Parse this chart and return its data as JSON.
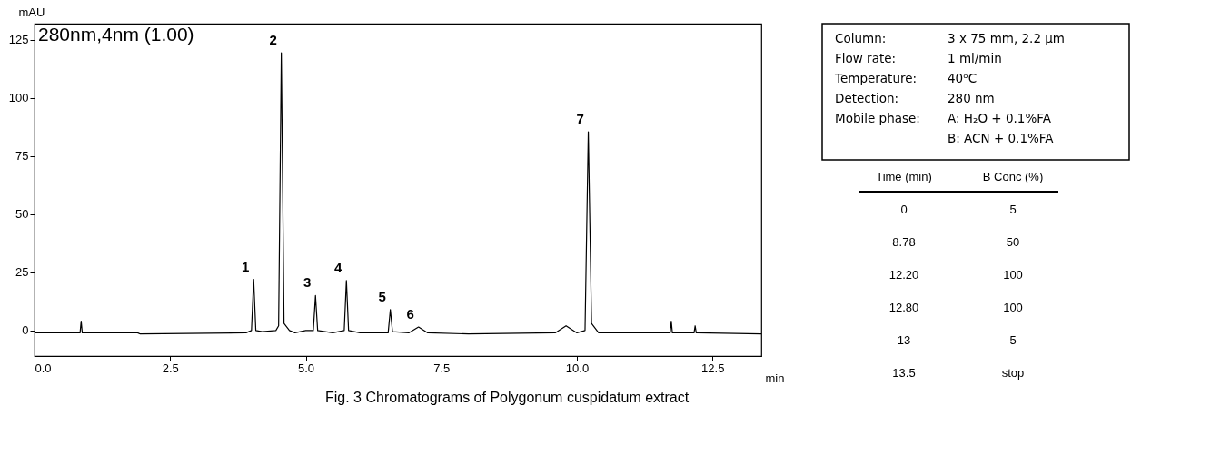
{
  "chart_data": [
    {
      "type": "line",
      "xlabel": "min",
      "ylabel": "mAU",
      "grid": false,
      "marker": "none",
      "line_style": "solid",
      "xlim": [
        0,
        13.4
      ],
      "ylim": [
        -11,
        132
      ],
      "xticks": [
        {
          "value": 0,
          "label": "0.0"
        },
        2.5,
        {
          "value": 5,
          "label": "5.0"
        },
        7.5,
        {
          "value": 10,
          "label": "10.0"
        },
        12.5
      ],
      "yticks": [
        0,
        25,
        50,
        75,
        100,
        125
      ],
      "series": [
        {
          "color": "#000000",
          "x": [
            0,
            0.5,
            0.84,
            0.86,
            0.88,
            1.9,
            1.95,
            3.9,
            4.0,
            4.04,
            4.08,
            4.2,
            4.45,
            4.5,
            4.55,
            4.6,
            4.7,
            4.8,
            5.0,
            5.14,
            5.18,
            5.22,
            5.5,
            5.71,
            5.75,
            5.79,
            6.0,
            6.52,
            6.56,
            6.6,
            6.9,
            7.08,
            7.25,
            8.0,
            9.6,
            9.8,
            10.0,
            10.15,
            10.21,
            10.27,
            10.4,
            11.0,
            11.72,
            11.74,
            11.76,
            12.16,
            12.18,
            12.2,
            13.4
          ],
          "values": [
            -1,
            -1,
            -1,
            4,
            -1,
            -1,
            -1.5,
            -1,
            0,
            22,
            0,
            -0.5,
            0,
            2,
            119.5,
            3,
            0,
            -1,
            0,
            0,
            15,
            0,
            -1,
            0,
            21.5,
            0,
            -1,
            -1,
            9,
            -0.5,
            -1,
            1.5,
            -1,
            -1.5,
            -1,
            2,
            -1,
            0,
            85.5,
            3,
            -1,
            -1,
            -1,
            4,
            -1,
            -1,
            2,
            -1,
            -1.5
          ]
        }
      ],
      "annotations": [
        "280nm,4nm (1.00)",
        "Fig. 3 Chromatograms of Polygonum cuspidatum extract",
        {
          "text": "1",
          "x": 4.04,
          "y": 22
        },
        {
          "text": "2",
          "x": 4.55,
          "y": 119.5
        },
        {
          "text": "3",
          "x": 5.18,
          "y": 15
        },
        {
          "text": "4",
          "x": 5.75,
          "y": 21.5
        },
        {
          "text": "5",
          "x": 6.56,
          "y": 9
        },
        {
          "text": "6",
          "x": 7.08,
          "y": 1.5
        },
        {
          "text": "7",
          "x": 10.21,
          "y": 85.5
        }
      ]
    },
    {
      "type": "other",
      "annotations": [
        "Column:",
        "3 x 75 mm, 2.2 µm",
        "Flow rate:",
        "1 ml/min",
        "Temperature:",
        "40ᵒC",
        "Detection:",
        "280 nm",
        "Mobile phase:",
        "A: H₂O + 0.1%FA",
        "B: ACN + 0.1%FA"
      ]
    },
    {
      "type": "other",
      "annotations": [
        "Time (min)",
        "B Conc  (%)",
        "0",
        "5",
        "8.78",
        "50",
        "12.20",
        "100",
        "12.80",
        "100",
        "13",
        "5",
        "13.5",
        "stop"
      ]
    }
  ]
}
